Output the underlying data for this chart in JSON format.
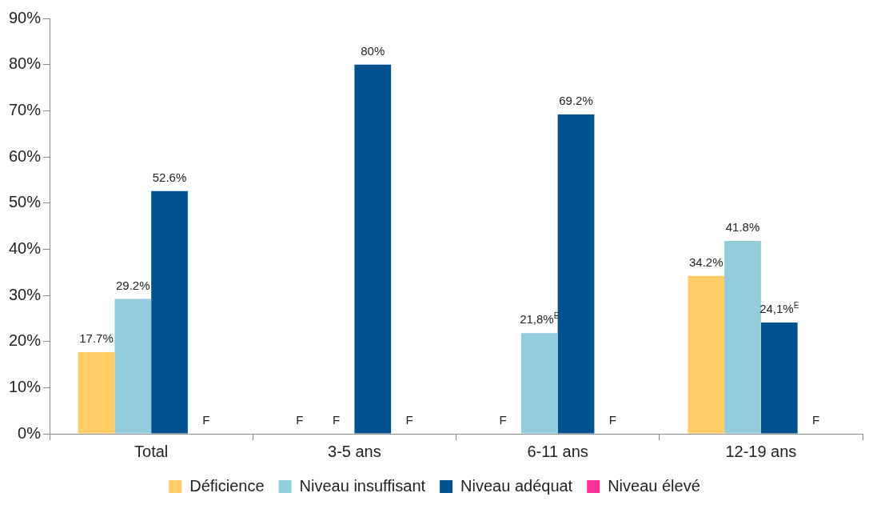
{
  "chart_data": {
    "type": "bar",
    "categories": [
      "Total",
      "3-5 ans",
      "6-11 ans",
      "12-19 ans"
    ],
    "series": [
      {
        "name": "Déficience",
        "color": "#ffcc66",
        "values": [
          17.7,
          null,
          null,
          34.2
        ],
        "value_labels": [
          "17.7%",
          "F",
          "F",
          "34.2%"
        ]
      },
      {
        "name": "Niveau insuffisant",
        "color": "#92cddc",
        "values": [
          29.2,
          null,
          21.8,
          41.8
        ],
        "value_labels": [
          "29.2%",
          "F",
          "21,8%$^{E}$",
          "41.8%"
        ]
      },
      {
        "name": "Niveau adéquat",
        "color": "#00538f",
        "values": [
          52.6,
          80,
          69.2,
          24.1
        ],
        "value_labels": [
          "52.6%",
          "80%",
          "69.2%",
          "24,1%$^{E}$"
        ]
      },
      {
        "name": "Niveau élevé",
        "color": "#ff3399",
        "values": [
          null,
          null,
          null,
          null
        ],
        "value_labels": [
          "F",
          "F",
          "F",
          "F"
        ]
      }
    ],
    "ylim": [
      0,
      90
    ],
    "yticks": [
      {
        "value": 0,
        "label": "0%"
      },
      {
        "value": 10,
        "label": "10%"
      },
      {
        "value": 20,
        "label": "20%"
      },
      {
        "value": 30,
        "label": "30%"
      },
      {
        "value": 40,
        "label": "40%"
      },
      {
        "value": 50,
        "label": "50%"
      },
      {
        "value": 60,
        "label": "60%"
      },
      {
        "value": 70,
        "label": "70%"
      },
      {
        "value": 80,
        "label": "80%"
      },
      {
        "value": 90,
        "label": "90%"
      }
    ],
    "grid": false,
    "legend": "bottom"
  }
}
